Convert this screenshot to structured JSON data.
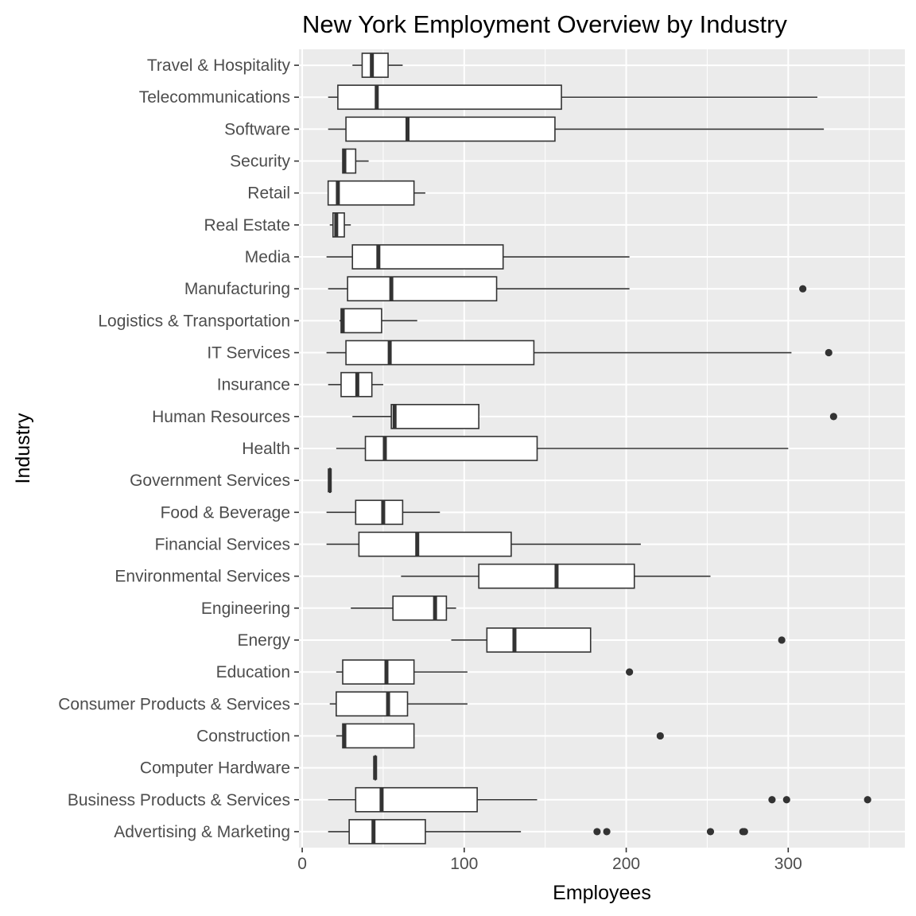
{
  "chart_data": {
    "type": "boxplot",
    "orientation": "horizontal",
    "title": "New York Employment Overview by Industry",
    "xlabel": "Employees",
    "ylabel": "Industry",
    "xlim": [
      -2,
      372
    ],
    "xticks": [
      0,
      100,
      200,
      300
    ],
    "xtick_labels": [
      "0",
      "100",
      "200",
      "300"
    ],
    "grid": true,
    "legend": "none",
    "colors": {
      "panel_background": "#ebebeb",
      "grid_line": "#ffffff",
      "box_fill": "#ffffff",
      "box_stroke": "#333333",
      "outlier": "#333333",
      "tick_label": "#4d4d4d"
    },
    "categories": [
      "Travel & Hospitality",
      "Telecommunications",
      "Software",
      "Security",
      "Retail",
      "Real Estate",
      "Media",
      "Manufacturing",
      "Logistics & Transportation",
      "IT Services",
      "Insurance",
      "Human Resources",
      "Health",
      "Government Services",
      "Food & Beverage",
      "Financial Services",
      "Environmental Services",
      "Engineering",
      "Energy",
      "Education",
      "Consumer Products & Services",
      "Construction",
      "Computer Hardware",
      "Business Products & Services",
      "Advertising & Marketing"
    ],
    "boxes": [
      {
        "category": "Travel & Hospitality",
        "whisker_low": 31,
        "q1": 37,
        "median": 43,
        "q3": 53,
        "whisker_high": 62,
        "outliers": []
      },
      {
        "category": "Telecommunications",
        "whisker_low": 16,
        "q1": 22,
        "median": 46,
        "q3": 160,
        "whisker_high": 318,
        "outliers": []
      },
      {
        "category": "Software",
        "whisker_low": 16,
        "q1": 27,
        "median": 65,
        "q3": 156,
        "whisker_high": 322,
        "outliers": []
      },
      {
        "category": "Security",
        "whisker_low": 25,
        "q1": 25,
        "median": 26,
        "q3": 33,
        "whisker_high": 41,
        "outliers": []
      },
      {
        "category": "Retail",
        "whisker_low": 16,
        "q1": 16,
        "median": 22,
        "q3": 69,
        "whisker_high": 76,
        "outliers": []
      },
      {
        "category": "Real Estate",
        "whisker_low": 17,
        "q1": 19,
        "median": 21,
        "q3": 26,
        "whisker_high": 30,
        "outliers": []
      },
      {
        "category": "Media",
        "whisker_low": 15,
        "q1": 31,
        "median": 47,
        "q3": 124,
        "whisker_high": 202,
        "outliers": []
      },
      {
        "category": "Manufacturing",
        "whisker_low": 16,
        "q1": 28,
        "median": 55,
        "q3": 120,
        "whisker_high": 202,
        "outliers": [
          309
        ]
      },
      {
        "category": "Logistics & Transportation",
        "whisker_low": 23,
        "q1": 24,
        "median": 25,
        "q3": 49,
        "whisker_high": 71,
        "outliers": []
      },
      {
        "category": "IT Services",
        "whisker_low": 15,
        "q1": 27,
        "median": 54,
        "q3": 143,
        "whisker_high": 302,
        "outliers": [
          325
        ]
      },
      {
        "category": "Insurance",
        "whisker_low": 16,
        "q1": 24,
        "median": 34,
        "q3": 43,
        "whisker_high": 50,
        "outliers": []
      },
      {
        "category": "Human Resources",
        "whisker_low": 31,
        "q1": 55,
        "median": 57,
        "q3": 109,
        "whisker_high": 109,
        "outliers": [
          328
        ]
      },
      {
        "category": "Health",
        "whisker_low": 21,
        "q1": 39,
        "median": 51,
        "q3": 145,
        "whisker_high": 300,
        "outliers": []
      },
      {
        "category": "Government Services",
        "whisker_low": 17,
        "q1": 17,
        "median": 17,
        "q3": 17,
        "whisker_high": 17,
        "outliers": []
      },
      {
        "category": "Food & Beverage",
        "whisker_low": 15,
        "q1": 33,
        "median": 50,
        "q3": 62,
        "whisker_high": 85,
        "outliers": []
      },
      {
        "category": "Financial Services",
        "whisker_low": 15,
        "q1": 35,
        "median": 71,
        "q3": 129,
        "whisker_high": 209,
        "outliers": []
      },
      {
        "category": "Environmental Services",
        "whisker_low": 61,
        "q1": 109,
        "median": 157,
        "q3": 205,
        "whisker_high": 252,
        "outliers": []
      },
      {
        "category": "Engineering",
        "whisker_low": 30,
        "q1": 56,
        "median": 82,
        "q3": 89,
        "whisker_high": 95,
        "outliers": []
      },
      {
        "category": "Energy",
        "whisker_low": 92,
        "q1": 114,
        "median": 131,
        "q3": 178,
        "whisker_high": 178,
        "outliers": [
          296
        ]
      },
      {
        "category": "Education",
        "whisker_low": 21,
        "q1": 25,
        "median": 52,
        "q3": 69,
        "whisker_high": 102,
        "outliers": [
          202
        ]
      },
      {
        "category": "Consumer Products & Services",
        "whisker_low": 17,
        "q1": 21,
        "median": 53,
        "q3": 65,
        "whisker_high": 102,
        "outliers": []
      },
      {
        "category": "Construction",
        "whisker_low": 21,
        "q1": 25,
        "median": 26,
        "q3": 69,
        "whisker_high": 69,
        "outliers": [
          221
        ]
      },
      {
        "category": "Computer Hardware",
        "whisker_low": 45,
        "q1": 45,
        "median": 45,
        "q3": 45,
        "whisker_high": 45,
        "outliers": []
      },
      {
        "category": "Business Products & Services",
        "whisker_low": 16,
        "q1": 33,
        "median": 49,
        "q3": 108,
        "whisker_high": 145,
        "outliers": [
          290,
          299,
          349
        ]
      },
      {
        "category": "Advertising & Marketing",
        "whisker_low": 16,
        "q1": 29,
        "median": 44,
        "q3": 76,
        "whisker_high": 135,
        "outliers": [
          182,
          188,
          252,
          272,
          273
        ]
      }
    ]
  }
}
